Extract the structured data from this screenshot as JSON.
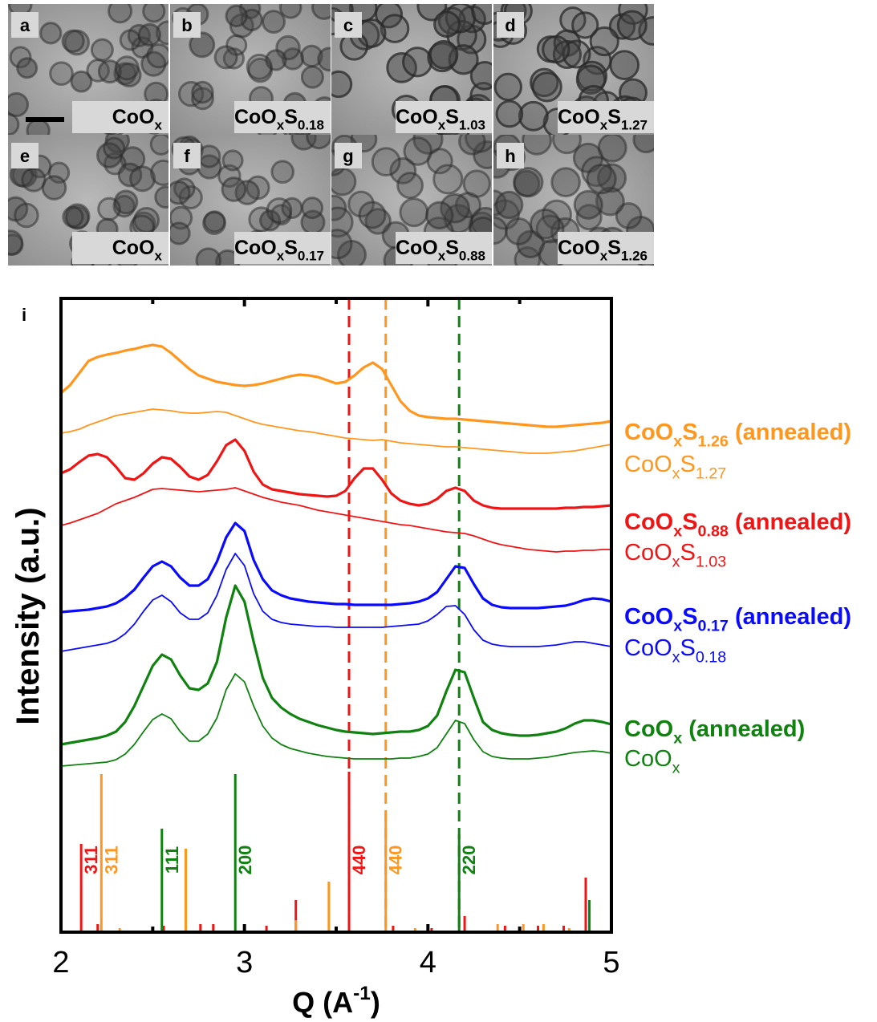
{
  "panels": [
    {
      "letter": "a",
      "label": [
        "CoO",
        "x"
      ]
    },
    {
      "letter": "b",
      "label": [
        "CoO",
        "x",
        "S",
        "0.18"
      ]
    },
    {
      "letter": "c",
      "label": [
        "CoO",
        "x",
        "S",
        "1.03"
      ]
    },
    {
      "letter": "d",
      "label": [
        "CoO",
        "x",
        "S",
        "1.27"
      ]
    },
    {
      "letter": "e",
      "label": [
        "CoO",
        "x"
      ]
    },
    {
      "letter": "f",
      "label": [
        "CoO",
        "x",
        "S",
        "0.17"
      ]
    },
    {
      "letter": "g",
      "label": [
        "CoO",
        "x",
        "S",
        "0.88"
      ]
    },
    {
      "letter": "h",
      "label": [
        "CoO",
        "x",
        "S",
        "1.26"
      ]
    }
  ],
  "chart_data": {
    "type": "line",
    "panel": "i",
    "xlabel": [
      "Q (A",
      "-1",
      ")"
    ],
    "ylabel": "Intensity (a.u.)",
    "xlim": [
      2,
      5
    ],
    "xticks": [
      2,
      3,
      4,
      5
    ],
    "xminor": [
      2.5,
      3.5,
      4.5
    ],
    "ylim": [
      0,
      790
    ],
    "x": [
      2,
      2.05,
      2.1,
      2.15,
      2.2,
      2.25,
      2.3,
      2.35,
      2.4,
      2.45,
      2.5,
      2.55,
      2.6,
      2.65,
      2.7,
      2.75,
      2.8,
      2.85,
      2.9,
      2.95,
      3,
      3.05,
      3.1,
      3.15,
      3.2,
      3.25,
      3.3,
      3.35,
      3.4,
      3.45,
      3.5,
      3.55,
      3.6,
      3.65,
      3.7,
      3.75,
      3.8,
      3.85,
      3.9,
      3.95,
      4,
      4.05,
      4.1,
      4.15,
      4.2,
      4.25,
      4.3,
      4.35,
      4.4,
      4.45,
      4.5,
      4.55,
      4.6,
      4.65,
      4.7,
      4.75,
      4.8,
      4.85,
      4.9,
      4.95,
      5
    ],
    "series": [
      {
        "name": [
          "CoO",
          "x",
          "S",
          "1.26",
          " (annealed)"
        ],
        "color": "#ff961e",
        "line_width": 3.2,
        "values": [
          672,
          682,
          697,
          712,
          717,
          720,
          722,
          725,
          727,
          730,
          732,
          730,
          722,
          712,
          702,
          694,
          690,
          686,
          684,
          682,
          681,
          682,
          684,
          687,
          690,
          693,
          695,
          694,
          692,
          688,
          684,
          686,
          694,
          704,
          710,
          702,
          682,
          662,
          650,
          644,
          642,
          641,
          640,
          640,
          639,
          638,
          637,
          636,
          635,
          634,
          633,
          632,
          631,
          630,
          630,
          631,
          632,
          633,
          634,
          635,
          637
        ]
      },
      {
        "name": [
          "CoO",
          "x",
          "S",
          "1.27"
        ],
        "color": "#ff961e",
        "line_width": 1.8,
        "values": [
          622,
          624,
          627,
          632,
          636,
          640,
          644,
          646,
          648,
          650,
          652,
          651,
          650,
          648,
          647,
          647,
          648,
          649,
          648,
          644,
          640,
          636,
          633,
          631,
          629,
          627,
          625,
          624,
          622,
          620,
          618,
          616,
          615,
          614,
          613,
          614,
          612,
          610,
          609,
          608,
          607,
          606,
          605,
          605,
          604,
          603,
          602,
          601,
          600,
          599,
          598,
          597,
          597,
          597,
          598,
          599,
          600,
          602,
          604,
          606,
          608
        ]
      },
      {
        "name": [
          "CoO",
          "x",
          "S",
          "0.88",
          " (annealed)"
        ],
        "color": "#f01414",
        "line_width": 3.2,
        "values": [
          572,
          577,
          586,
          594,
          596,
          592,
          580,
          566,
          564,
          572,
          584,
          592,
          590,
          580,
          568,
          564,
          570,
          587,
          607,
          614,
          600,
          574,
          558,
          552,
          550,
          548,
          546,
          545,
          544,
          543,
          544,
          550,
          566,
          578,
          578,
          564,
          547,
          538,
          534,
          532,
          534,
          540,
          550,
          554,
          550,
          538,
          532,
          529,
          528,
          528,
          528,
          528,
          528,
          528,
          528,
          529,
          529,
          530,
          530,
          531,
          532
        ]
      },
      {
        "name": [
          "CoO",
          "x",
          "S",
          "1.03"
        ],
        "color": "#f01414",
        "line_width": 1.8,
        "values": [
          507,
          510,
          514,
          518,
          522,
          528,
          534,
          538,
          542,
          547,
          552,
          553,
          552,
          551,
          550,
          549,
          550,
          551,
          552,
          554,
          550,
          546,
          542,
          539,
          536,
          534,
          532,
          529,
          526,
          524,
          522,
          520,
          518,
          516,
          514,
          512,
          510,
          508,
          507,
          505,
          503,
          501,
          499,
          498,
          497,
          494,
          490,
          486,
          483,
          481,
          479,
          477,
          476,
          475,
          474,
          475,
          475,
          476,
          476,
          477,
          477
        ]
      },
      {
        "name": [
          "CoO",
          "x",
          "S",
          "0.17",
          " (annealed)"
        ],
        "color": "#0a0aff",
        "line_width": 3.2,
        "values": [
          399,
          400,
          401,
          402,
          404,
          406,
          410,
          417,
          427,
          442,
          456,
          462,
          456,
          442,
          432,
          432,
          440,
          462,
          492,
          510,
          500,
          464,
          440,
          426,
          420,
          416,
          414,
          412,
          411,
          410,
          409,
          409,
          408,
          408,
          408,
          408,
          408,
          409,
          410,
          412,
          416,
          424,
          440,
          456,
          454,
          434,
          416,
          408,
          405,
          404,
          404,
          404,
          404,
          405,
          406,
          407,
          410,
          414,
          416,
          415,
          412
        ]
      },
      {
        "name": [
          "CoO",
          "x",
          "S",
          "0.18"
        ],
        "color": "#0a0aff",
        "line_width": 1.8,
        "values": [
          350,
          352,
          354,
          356,
          358,
          360,
          364,
          372,
          384,
          400,
          414,
          420,
          412,
          398,
          390,
          390,
          398,
          420,
          452,
          472,
          457,
          422,
          400,
          390,
          386,
          384,
          383,
          382,
          381,
          381,
          380,
          380,
          380,
          380,
          380,
          380,
          381,
          382,
          383,
          384,
          388,
          396,
          406,
          407,
          396,
          377,
          364,
          359,
          357,
          356,
          356,
          356,
          356,
          357,
          358,
          360,
          362,
          362,
          360,
          358,
          356
        ]
      },
      {
        "name": [
          "CoO",
          "x",
          " (annealed)"
        ],
        "color": "#0f820f",
        "line_width": 3.2,
        "values": [
          234,
          236,
          238,
          240,
          242,
          245,
          250,
          262,
          282,
          307,
          332,
          346,
          340,
          320,
          304,
          302,
          310,
          337,
          392,
          432,
          412,
          362,
          317,
          292,
          280,
          272,
          266,
          262,
          258,
          255,
          252,
          250,
          249,
          248,
          247,
          248,
          249,
          250,
          250,
          252,
          257,
          270,
          300,
          327,
          324,
          292,
          262,
          252,
          248,
          246,
          245,
          245,
          246,
          248,
          250,
          254,
          260,
          264,
          264,
          262,
          259
        ]
      },
      {
        "name": [
          "CoO",
          "x"
        ],
        "color": "#0f820f",
        "line_width": 1.8,
        "values": [
          207,
          208,
          209,
          210,
          211,
          212,
          215,
          222,
          234,
          250,
          265,
          272,
          266,
          250,
          238,
          238,
          247,
          267,
          302,
          322,
          312,
          282,
          257,
          242,
          234,
          229,
          226,
          223,
          221,
          219,
          218,
          217,
          216,
          216,
          216,
          216,
          216,
          217,
          217,
          219,
          222,
          230,
          247,
          264,
          260,
          240,
          225,
          219,
          217,
          216,
          216,
          216,
          217,
          218,
          220,
          222,
          224,
          225,
          226,
          225,
          223
        ]
      }
    ],
    "references": [
      {
        "color": "#f01414",
        "dashed": 3.57,
        "peaks": [
          {
            "x": 2.11,
            "height": 110,
            "label": "311"
          },
          {
            "x": 2.2,
            "height": 10
          },
          {
            "x": 2.56,
            "height": 8
          },
          {
            "x": 2.76,
            "height": 10
          },
          {
            "x": 2.83,
            "height": 10
          },
          {
            "x": 3.12,
            "height": 8
          },
          {
            "x": 3.28,
            "height": 40
          },
          {
            "x": 3.57,
            "height": 200,
            "label": "440"
          },
          {
            "x": 3.81,
            "height": 8
          },
          {
            "x": 4.02,
            "height": 5
          },
          {
            "x": 4.2,
            "height": 20
          },
          {
            "x": 4.42,
            "height": 8
          },
          {
            "x": 4.6,
            "height": 8
          },
          {
            "x": 4.74,
            "height": 8
          },
          {
            "x": 4.86,
            "height": 68
          }
        ]
      },
      {
        "color": "#ff961e",
        "dashed": 3.77,
        "peaks": [
          {
            "x": 2.22,
            "height": 197,
            "label": "311"
          },
          {
            "x": 2.32,
            "height": 5
          },
          {
            "x": 2.68,
            "height": 104
          },
          {
            "x": 3.28,
            "height": 15
          },
          {
            "x": 3.46,
            "height": 63
          },
          {
            "x": 3.77,
            "height": 149,
            "label": "440"
          },
          {
            "x": 3.93,
            "height": 5
          },
          {
            "x": 4.38,
            "height": 10
          },
          {
            "x": 4.52,
            "height": 10
          },
          {
            "x": 4.63,
            "height": 10
          },
          {
            "x": 4.77,
            "height": 5
          }
        ]
      },
      {
        "color": "#0f820f",
        "dashed": 4.17,
        "peaks": [
          {
            "x": 2.55,
            "height": 129,
            "label": "111"
          },
          {
            "x": 2.95,
            "height": 197,
            "label": "200"
          },
          {
            "x": 4.17,
            "height": 122,
            "label": "220"
          },
          {
            "x": 4.88,
            "height": 40
          }
        ]
      }
    ]
  }
}
